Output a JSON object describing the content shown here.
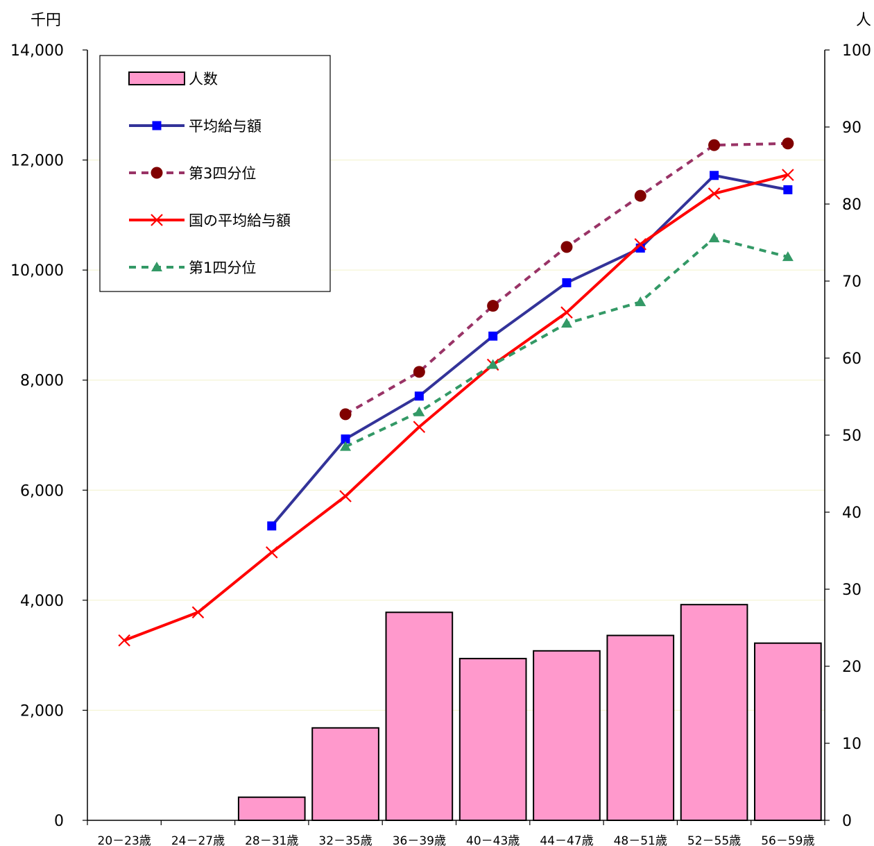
{
  "chart_data": {
    "type": "bar+line",
    "title": "",
    "categories": [
      "20－23歳",
      "24－27歳",
      "28－31歳",
      "32－35歳",
      "36－39歳",
      "40－43歳",
      "44－47歳",
      "48－51歳",
      "52－55歳",
      "56－59歳"
    ],
    "y_left": {
      "unit": "千円",
      "range": [
        0,
        14000
      ],
      "ticks": [
        "0",
        "2,000",
        "4,000",
        "6,000",
        "8,000",
        "10,000",
        "12,000",
        "14,000"
      ]
    },
    "y_right": {
      "unit": "人",
      "range": [
        0,
        100
      ],
      "ticks": [
        "0",
        "10",
        "20",
        "30",
        "40",
        "50",
        "60",
        "70",
        "80",
        "90",
        "100"
      ]
    },
    "bars": {
      "name": "人数",
      "axis": "right",
      "color": "#ff99cc",
      "values": [
        0,
        0,
        3,
        12,
        27,
        21,
        22,
        24,
        28,
        23
      ]
    },
    "series": [
      {
        "name": "平均給与額",
        "axis": "left",
        "color": "#333399",
        "marker": "square",
        "dash": false,
        "values": [
          null,
          null,
          5350,
          6930,
          7710,
          8800,
          9770,
          10400,
          11720,
          11460
        ]
      },
      {
        "name": "第3四分位",
        "axis": "left",
        "color": "#993366",
        "marker": "circle",
        "dash": true,
        "marker_color": "#800000",
        "values": [
          null,
          null,
          null,
          7380,
          8150,
          9350,
          10420,
          11350,
          12270,
          12300
        ]
      },
      {
        "name": "国の平均給与額",
        "axis": "left",
        "color": "#ff0000",
        "marker": "x",
        "dash": false,
        "values": [
          3270,
          3780,
          4870,
          5890,
          7150,
          8280,
          9230,
          10470,
          11390,
          11730
        ]
      },
      {
        "name": "第1四分位",
        "axis": "left",
        "color": "#339966",
        "marker": "triangle",
        "dash": true,
        "values": [
          null,
          null,
          null,
          6790,
          7420,
          8280,
          9030,
          9420,
          10580,
          10240
        ]
      }
    ],
    "grid": true,
    "legend_position": "top-left"
  }
}
